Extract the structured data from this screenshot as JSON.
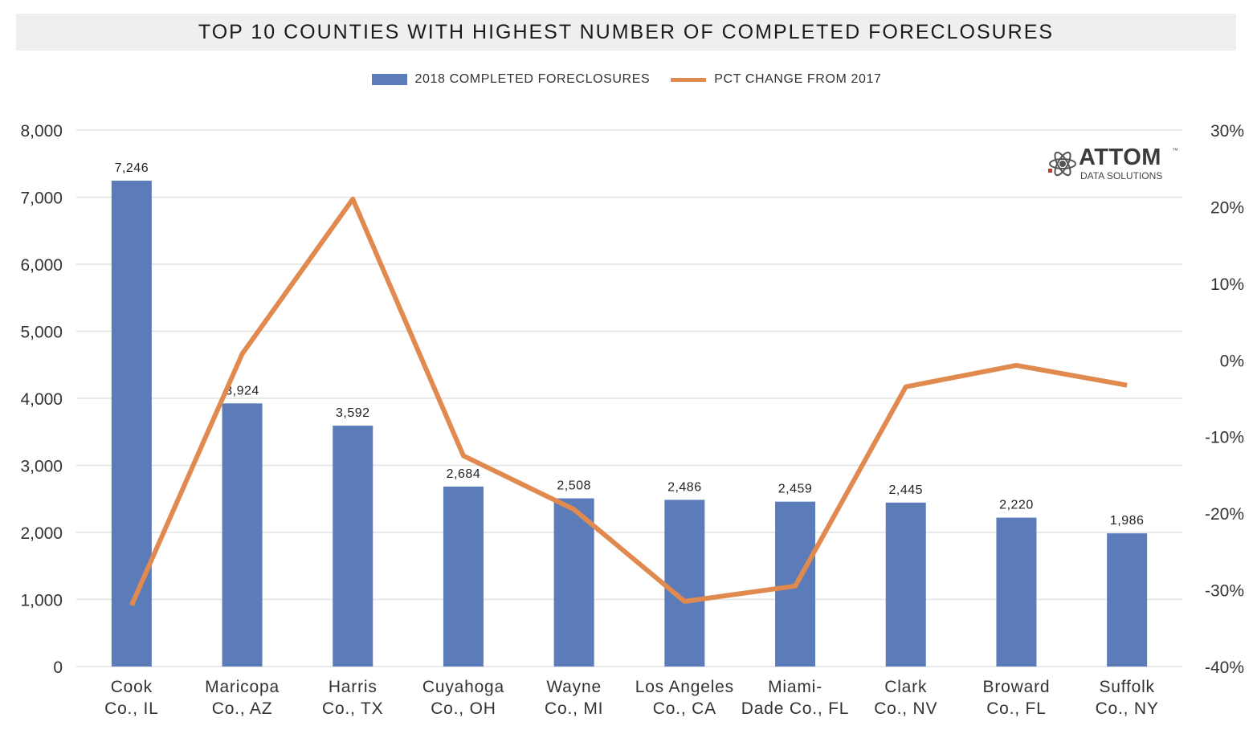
{
  "title": "TOP 10 COUNTIES WITH HIGHEST NUMBER OF COMPLETED FORECLOSURES",
  "logo": {
    "word": "ATTOM",
    "tm": "™",
    "sub": "DATA SOLUTIONS"
  },
  "colors": {
    "bar": "#5b7bb9",
    "line": "#e08a4f",
    "grid": "#e2e2e2",
    "title_bg": "#efefef"
  },
  "chart_data": {
    "type": "bar",
    "title": "TOP 10 COUNTIES WITH HIGHEST NUMBER OF COMPLETED FORECLOSURES",
    "categories": [
      [
        "Cook",
        "Co., IL"
      ],
      [
        "Maricopa",
        "Co., AZ"
      ],
      [
        "Harris",
        "Co., TX"
      ],
      [
        "Cuyahoga",
        "Co., OH"
      ],
      [
        "Wayne",
        "Co., MI"
      ],
      [
        "Los Angeles",
        "Co., CA"
      ],
      [
        "Miami-",
        "Dade Co., FL"
      ],
      [
        "Clark",
        "Co., NV"
      ],
      [
        "Broward",
        "Co., FL"
      ],
      [
        "Suffolk",
        "Co., NY"
      ]
    ],
    "series": [
      {
        "name": "2018 COMPLETED FORECLOSURES",
        "type": "bar",
        "axis": "left",
        "values": [
          7246,
          3924,
          3592,
          2684,
          2508,
          2486,
          2459,
          2445,
          2220,
          1986
        ],
        "labels": [
          "7,246",
          "3,924",
          "3,592",
          "2,684",
          "2,508",
          "2,486",
          "2,459",
          "2,445",
          "2,220",
          "1,986"
        ]
      },
      {
        "name": "PCT CHANGE FROM 2017",
        "type": "line",
        "axis": "right",
        "values": [
          -32.0,
          0.8,
          21.0,
          -12.5,
          -19.5,
          -31.5,
          -29.5,
          -3.5,
          -0.7,
          -3.3
        ]
      }
    ],
    "y_left": {
      "range": [
        0,
        8000
      ],
      "ticks": [
        0,
        1000,
        2000,
        3000,
        4000,
        5000,
        6000,
        7000,
        8000
      ],
      "tick_labels": [
        "0",
        "1,000",
        "2,000",
        "3,000",
        "4,000",
        "5,000",
        "6,000",
        "7,000",
        "8,000"
      ]
    },
    "y_right": {
      "range": [
        -40,
        30
      ],
      "ticks": [
        -40,
        -30,
        -20,
        -10,
        0,
        10,
        20,
        30
      ],
      "tick_labels": [
        "-40%",
        "-30%",
        "-20%",
        "-10%",
        "0%",
        "10%",
        "20%",
        "30%"
      ]
    },
    "grid": true,
    "legend": "top-center"
  }
}
